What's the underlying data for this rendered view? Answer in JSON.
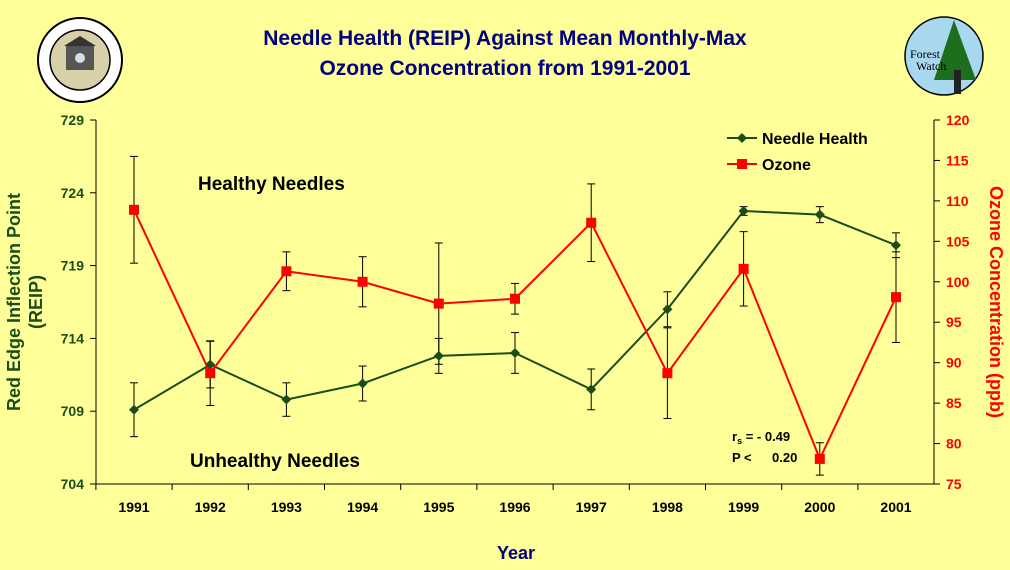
{
  "chart_data": {
    "type": "line",
    "title": [
      "Needle Health (REIP) Against Mean Monthly-Max",
      "Ozone Concentration from 1991-2001"
    ],
    "xlabel": "Year",
    "ylabel_left": [
      "Red Edge Inflection Point",
      "(REIP)"
    ],
    "ylabel_right": "Ozone Concentration (ppb)",
    "x": [
      "1991",
      "1992",
      "1993",
      "1994",
      "1995",
      "1996",
      "1997",
      "1998",
      "1999",
      "2000",
      "2001"
    ],
    "ylim_left": [
      704,
      729
    ],
    "yticks_left": [
      "704",
      "709",
      "714",
      "719",
      "724",
      "729"
    ],
    "ylim_right": [
      75,
      120
    ],
    "yticks_right": [
      "75",
      "80",
      "85",
      "90",
      "95",
      "100",
      "105",
      "110",
      "115",
      "120"
    ],
    "grid": false,
    "legend_position": "top-right",
    "series": [
      {
        "name": "Needle Health",
        "axis": "left",
        "color": "#1a4d1a",
        "marker": "diamond",
        "values": [
          709.1,
          712.2,
          709.8,
          710.9,
          712.8,
          713.0,
          710.5,
          716.0,
          722.75,
          722.5,
          720.4
        ],
        "errors": [
          1.85,
          1.6,
          1.15,
          1.2,
          1.2,
          1.4,
          1.4,
          1.2,
          0.3,
          0.55,
          0.85
        ]
      },
      {
        "name": "Ozone",
        "axis": "right",
        "color": "#ff0000",
        "marker": "square",
        "values": [
          108.9,
          88.7,
          101.3,
          100.0,
          97.3,
          97.9,
          107.3,
          88.7,
          101.6,
          78.1,
          98.1
        ],
        "errors": [
          6.6,
          4.0,
          2.4,
          3.1,
          7.5,
          1.9,
          4.8,
          5.6,
          4.6,
          2.0,
          5.6
        ]
      }
    ],
    "annotations": {
      "healthy": "Healthy Needles",
      "unhealthy": "Unhealthy Needles",
      "rs_label": "r",
      "rs_sub": "s",
      "rs_value": " = - 0.49",
      "p_label": "P <",
      "p_value": "0.20"
    }
  },
  "logos": {
    "left": "THE UNIVERSITY OF NEW HAMPSHIRE 1923",
    "right": "Forest Watch"
  }
}
